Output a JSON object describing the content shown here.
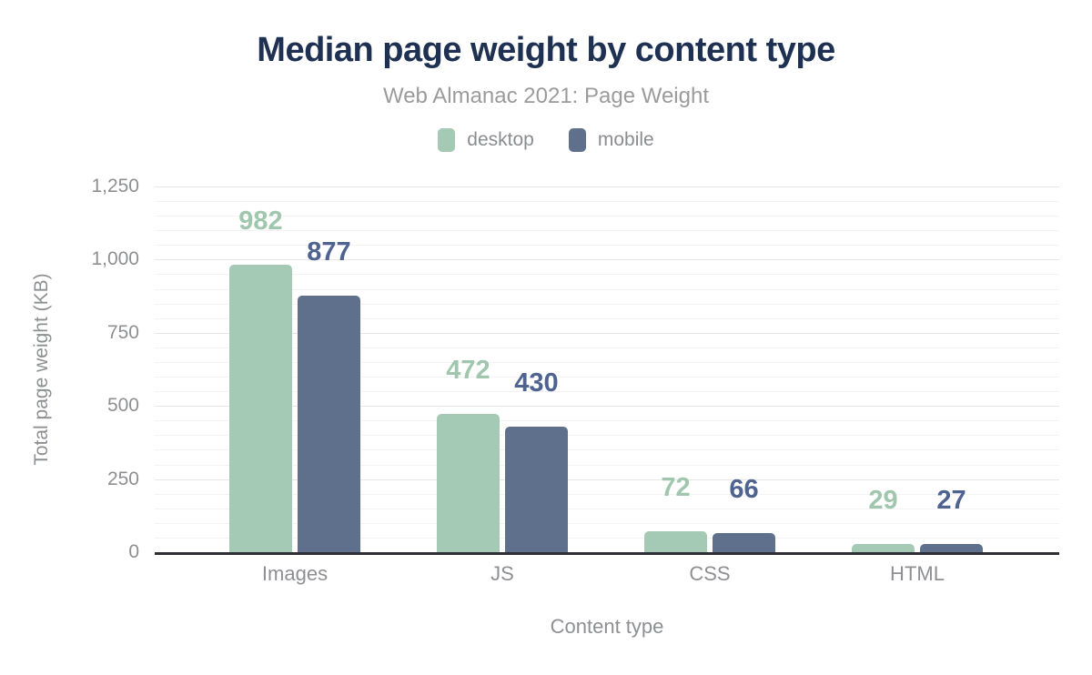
{
  "title": "Median page weight by content type",
  "subtitle": "Web Almanac 2021: Page Weight",
  "colors": {
    "background": "#ffffff",
    "title": "#1e3152",
    "subtitle": "#9b9b9b",
    "axis_text": "#8e8f93",
    "legend_text": "#8b8c90",
    "axis_line": "#2e2e36",
    "grid_major": "#e6e6ea",
    "grid_minor": "#f3f3f6"
  },
  "chart_data": {
    "type": "bar",
    "title": "Median page weight by content type",
    "subtitle": "Web Almanac 2021: Page Weight",
    "categories": [
      "Images",
      "JS",
      "CSS",
      "HTML"
    ],
    "series": [
      {
        "name": "desktop",
        "values": [
          982,
          472,
          72,
          29
        ],
        "color": "#a4c9b5",
        "label_color": "#a0c7ae"
      },
      {
        "name": "mobile",
        "values": [
          877,
          430,
          66,
          27
        ],
        "color": "#5f708c",
        "label_color": "#4f6390"
      }
    ],
    "xlabel": "Content type",
    "ylabel": "Total page weight (KB)",
    "ylim": [
      0,
      1250
    ],
    "yticks": [
      0,
      250,
      500,
      750,
      1000,
      1250
    ],
    "ytick_labels": [
      "0",
      "250",
      "500",
      "750",
      "1,000",
      "1,250"
    ],
    "y_minor_step": 50,
    "grid": true,
    "legend_position": "top"
  }
}
